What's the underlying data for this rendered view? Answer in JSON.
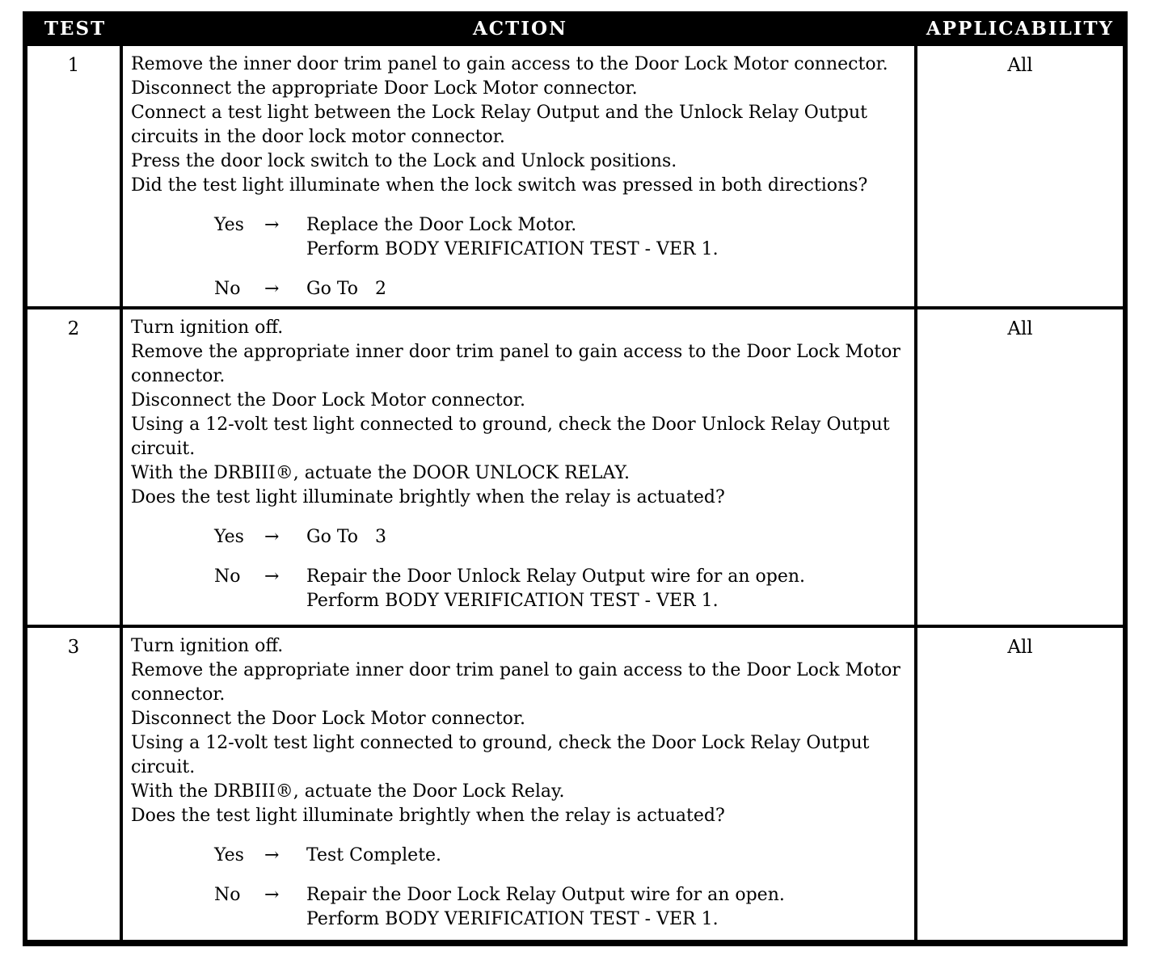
{
  "table": {
    "border_color": "#000000",
    "header": {
      "bg": "#000000",
      "text_color": "#ffffff",
      "columns": [
        {
          "label": "TEST"
        },
        {
          "label": "ACTION"
        },
        {
          "label": "APPLICABILITY"
        }
      ]
    },
    "rows": [
      {
        "test": "1",
        "applicability": "All",
        "instructions": [
          "Remove the inner door trim panel to gain access to the Door Lock Motor connector.",
          "Disconnect the appropriate Door Lock Motor connector.",
          "Connect a test light between the Lock Relay Output and the Unlock Relay Output circuits in the door lock motor connector.",
          "Press the door lock switch to the Lock and Unlock positions.",
          "Did the test light illuminate when the lock switch was pressed in both directions?"
        ],
        "branches": [
          {
            "label": "Yes",
            "arrow": "→",
            "results": [
              "Replace the Door Lock Motor.",
              "Perform BODY VERIFICATION TEST - VER 1."
            ]
          },
          {
            "label": "No",
            "arrow": "→",
            "results": [
              "Go To   2"
            ]
          }
        ]
      },
      {
        "test": "2",
        "applicability": "All",
        "instructions": [
          "Turn ignition off.",
          "Remove the appropriate inner door trim panel to gain access to the Door Lock Motor connector.",
          "Disconnect the Door Lock Motor connector.",
          "Using a 12-volt test light connected to ground, check the Door Unlock Relay Output circuit.",
          "With the DRBIII®, actuate the DOOR UNLOCK RELAY.",
          "Does the test light illuminate brightly when the relay is actuated?"
        ],
        "branches": [
          {
            "label": "Yes",
            "arrow": "→",
            "results": [
              "Go To   3"
            ]
          },
          {
            "label": "No",
            "arrow": "→",
            "results": [
              "Repair the Door Unlock Relay Output wire for an open.",
              "Perform BODY VERIFICATION TEST - VER 1."
            ]
          }
        ]
      },
      {
        "test": "3",
        "applicability": "All",
        "instructions": [
          "Turn ignition off.",
          "Remove the appropriate inner door trim panel to gain access to the Door Lock Motor connector.",
          "Disconnect the Door Lock Motor connector.",
          "Using a 12-volt test light connected to ground, check the Door Lock Relay Output circuit.",
          "With the DRBIII®, actuate the Door Lock Relay.",
          "Does the test light illuminate brightly when the relay is actuated?"
        ],
        "branches": [
          {
            "label": "Yes",
            "arrow": "→",
            "results": [
              "Test Complete."
            ]
          },
          {
            "label": "No",
            "arrow": "→",
            "results": [
              "Repair the Door Lock Relay Output wire for an open.",
              "Perform BODY VERIFICATION TEST - VER 1."
            ]
          }
        ]
      }
    ]
  }
}
